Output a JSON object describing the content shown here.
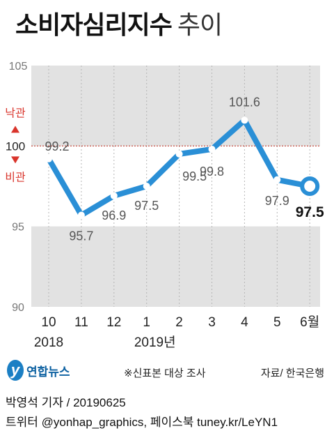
{
  "header": {
    "title_main": "소비자심리지수",
    "title_sub": "추이"
  },
  "chart_data": {
    "type": "line",
    "title": "소비자심리지수 추이",
    "categories": [
      "10",
      "11",
      "12",
      "1",
      "2",
      "3",
      "4",
      "5",
      "6월"
    ],
    "year_labels": [
      {
        "index": 0,
        "label": "2018"
      },
      {
        "index": 3,
        "label": "2019년"
      }
    ],
    "values": [
      99.2,
      95.7,
      96.9,
      97.5,
      99.5,
      99.8,
      101.6,
      97.9,
      97.5
    ],
    "value_labels": [
      "99.2",
      "95.7",
      "96.9",
      "97.5",
      "99.5",
      "99.8",
      "101.6",
      "97.9",
      "97.5"
    ],
    "ylim": [
      90,
      105
    ],
    "y_ticks": [
      {
        "value": 90,
        "label": "90"
      },
      {
        "value": 95,
        "label": "95"
      },
      {
        "value": 100,
        "label": "100"
      },
      {
        "value": 105,
        "label": "105"
      }
    ],
    "reference_line": {
      "value": 100,
      "above_label": "낙관",
      "below_label": "비관"
    },
    "shaded_bands": [
      {
        "from": 100,
        "to": 105
      },
      {
        "from": 90,
        "to": 95
      }
    ],
    "colors": {
      "line": "#2a8fd6",
      "band": "#e2e2e2",
      "reference": "#c0392b",
      "arrow": "#d9342b"
    },
    "grid": true
  },
  "footer": {
    "note": "※신표본 대상 조사",
    "source": "자료/ 한국은행",
    "logo_text": "연합뉴스",
    "credit_line1": "박영석 기자 / 20190625",
    "credit_line2": "트위터 @yonhap_graphics, 페이스북 tuney.kr/LeYN1"
  }
}
